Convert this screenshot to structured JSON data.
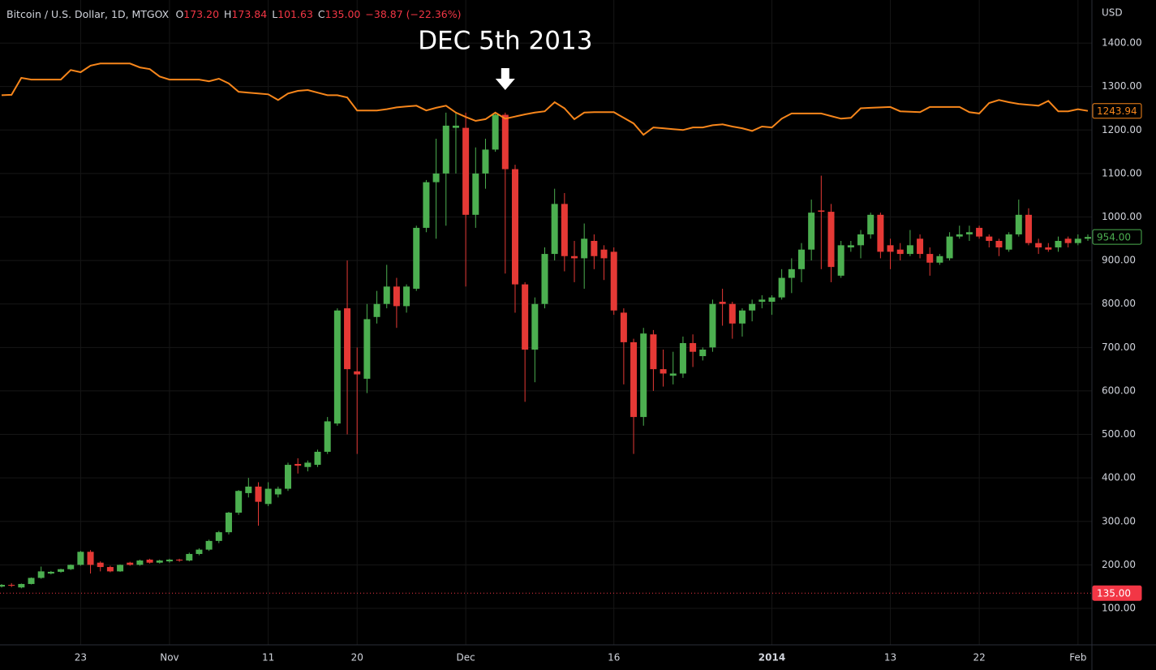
{
  "chart_data": {
    "type": "candlestick",
    "title": "Bitcoin / U.S. Dollar, 1D, MTGOX",
    "ohlc": [
      {
        "key": "O",
        "value": "173.20"
      },
      {
        "key": "H",
        "value": "173.84"
      },
      {
        "key": "L",
        "value": "101.63"
      },
      {
        "key": "C",
        "value": "135.00"
      }
    ],
    "change": "−38.87 (−22.36%)",
    "y_label": "USD",
    "annotation": {
      "text": "DEC 5th 2013",
      "x": "2013-12-05"
    },
    "x": [
      "2013-10-15",
      "2013-10-16",
      "2013-10-17",
      "2013-10-18",
      "2013-10-19",
      "2013-10-20",
      "2013-10-21",
      "2013-10-22",
      "2013-10-23",
      "2013-10-24",
      "2013-10-25",
      "2013-10-26",
      "2013-10-27",
      "2013-10-28",
      "2013-10-29",
      "2013-10-30",
      "2013-10-31",
      "2013-11-01",
      "2013-11-02",
      "2013-11-03",
      "2013-11-04",
      "2013-11-05",
      "2013-11-06",
      "2013-11-07",
      "2013-11-08",
      "2013-11-09",
      "2013-11-10",
      "2013-11-11",
      "2013-11-12",
      "2013-11-13",
      "2013-11-14",
      "2013-11-15",
      "2013-11-16",
      "2013-11-17",
      "2013-11-18",
      "2013-11-19",
      "2013-11-20",
      "2013-11-21",
      "2013-11-22",
      "2013-11-23",
      "2013-11-24",
      "2013-11-25",
      "2013-11-26",
      "2013-11-27",
      "2013-11-28",
      "2013-11-29",
      "2013-11-30",
      "2013-12-01",
      "2013-12-02",
      "2013-12-03",
      "2013-12-04",
      "2013-12-05",
      "2013-12-06",
      "2013-12-07",
      "2013-12-08",
      "2013-12-09",
      "2013-12-10",
      "2013-12-11",
      "2013-12-12",
      "2013-12-13",
      "2013-12-14",
      "2013-12-15",
      "2013-12-16",
      "2013-12-17",
      "2013-12-18",
      "2013-12-19",
      "2013-12-20",
      "2013-12-21",
      "2013-12-22",
      "2013-12-23",
      "2013-12-24",
      "2013-12-25",
      "2013-12-26",
      "2013-12-27",
      "2013-12-28",
      "2013-12-29",
      "2013-12-30",
      "2013-12-31",
      "2014-01-01",
      "2014-01-02",
      "2014-01-03",
      "2014-01-04",
      "2014-01-05",
      "2014-01-06",
      "2014-01-07",
      "2014-01-08",
      "2014-01-09",
      "2014-01-10",
      "2014-01-11",
      "2014-01-12",
      "2014-01-13",
      "2014-01-14",
      "2014-01-15",
      "2014-01-16",
      "2014-01-17",
      "2014-01-18",
      "2014-01-19",
      "2014-01-20",
      "2014-01-21",
      "2014-01-22",
      "2014-01-23",
      "2014-01-24",
      "2014-01-25",
      "2014-01-26",
      "2014-01-27",
      "2014-01-28",
      "2014-01-29",
      "2014-01-30",
      "2014-01-31",
      "2014-02-01",
      "2014-02-02"
    ],
    "open": [
      150,
      154,
      148,
      156,
      170,
      180,
      184,
      190,
      200,
      230,
      205,
      195,
      185,
      205,
      200,
      212,
      205,
      208,
      212,
      210,
      225,
      235,
      255,
      275,
      320,
      365,
      380,
      340,
      362,
      375,
      432,
      425,
      430,
      460,
      525,
      790,
      645,
      628,
      770,
      800,
      840,
      795,
      835,
      975,
      1080,
      1100,
      1205,
      1205,
      1005,
      1100,
      1155,
      1235,
      1110,
      845,
      695,
      800,
      915,
      1030,
      910,
      905,
      945,
      925,
      920,
      780,
      712,
      540,
      730,
      650,
      635,
      640,
      710,
      680,
      700,
      805,
      800,
      755,
      785,
      805,
      805,
      815,
      860,
      880,
      925,
      1015,
      1012,
      865,
      930,
      935,
      960,
      1005,
      935,
      925,
      915,
      950,
      915,
      895,
      905,
      955,
      960,
      975,
      955,
      945,
      925,
      960,
      1005,
      940,
      930,
      930,
      950,
      940,
      950
    ],
    "high": [
      156,
      158,
      157,
      171,
      196,
      186,
      191,
      201,
      232,
      234,
      208,
      198,
      201,
      207,
      212,
      214,
      212,
      214,
      214,
      228,
      238,
      258,
      278,
      322,
      372,
      400,
      390,
      390,
      380,
      435,
      445,
      440,
      465,
      540,
      790,
      900,
      700,
      800,
      830,
      890,
      860,
      845,
      980,
      1085,
      1180,
      1240,
      1240,
      1240,
      1160,
      1180,
      1240,
      1240,
      1120,
      850,
      815,
      930,
      1065,
      1055,
      945,
      985,
      960,
      935,
      930,
      790,
      720,
      745,
      740,
      695,
      690,
      725,
      730,
      700,
      810,
      835,
      805,
      790,
      810,
      820,
      820,
      880,
      905,
      940,
      1040,
      1095,
      1030,
      945,
      945,
      970,
      1010,
      1010,
      950,
      940,
      970,
      960,
      930,
      915,
      965,
      980,
      980,
      980,
      960,
      950,
      965,
      1040,
      1020,
      950,
      940,
      955,
      955,
      960,
      960
    ],
    "low": [
      148,
      149,
      146,
      155,
      168,
      178,
      182,
      188,
      198,
      180,
      185,
      183,
      184,
      198,
      198,
      203,
      203,
      205,
      207,
      208,
      222,
      232,
      250,
      270,
      315,
      355,
      290,
      335,
      355,
      370,
      410,
      415,
      425,
      455,
      520,
      500,
      455,
      595,
      755,
      790,
      745,
      780,
      830,
      965,
      950,
      980,
      1100,
      840,
      975,
      1065,
      1150,
      870,
      780,
      575,
      620,
      790,
      900,
      875,
      850,
      835,
      880,
      855,
      775,
      615,
      455,
      520,
      600,
      610,
      615,
      630,
      655,
      670,
      690,
      750,
      720,
      725,
      760,
      790,
      775,
      810,
      825,
      850,
      900,
      880,
      850,
      860,
      920,
      905,
      950,
      905,
      880,
      900,
      910,
      905,
      865,
      890,
      900,
      950,
      945,
      950,
      930,
      910,
      920,
      955,
      935,
      915,
      920,
      920,
      930,
      935,
      945
    ],
    "close": [
      154,
      152,
      156,
      170,
      185,
      184,
      190,
      200,
      230,
      200,
      195,
      185,
      200,
      200,
      210,
      205,
      210,
      212,
      210,
      225,
      235,
      255,
      275,
      320,
      370,
      380,
      345,
      375,
      375,
      430,
      428,
      435,
      460,
      530,
      785,
      650,
      638,
      765,
      800,
      840,
      795,
      840,
      975,
      1080,
      1100,
      1210,
      1210,
      1005,
      1100,
      1155,
      1235,
      1110,
      845,
      695,
      800,
      915,
      1030,
      910,
      905,
      950,
      910,
      905,
      785,
      712,
      540,
      732,
      650,
      640,
      640,
      710,
      690,
      695,
      800,
      800,
      755,
      785,
      800,
      810,
      815,
      860,
      880,
      925,
      1010,
      1012,
      885,
      935,
      935,
      960,
      1005,
      920,
      920,
      915,
      935,
      915,
      895,
      910,
      955,
      960,
      965,
      955,
      945,
      930,
      960,
      1005,
      940,
      930,
      925,
      945,
      940,
      950,
      954
    ],
    "last_close_label": "954.00",
    "up_color": "#4caf50",
    "down_color": "#e53935",
    "lines": [
      {
        "color": "#f7861b",
        "last_label": "1243.94",
        "values": [
          1280,
          1281,
          1320,
          1316,
          1316,
          1316,
          1316,
          1338,
          1333,
          1348,
          1353,
          1353,
          1353,
          1353,
          1344,
          1340,
          1323,
          1316,
          1316,
          1316,
          1316,
          1312,
          1318,
          1307,
          1288,
          1286,
          1284,
          1282,
          1269,
          1284,
          1290,
          1292,
          1286,
          1280,
          1280,
          1275,
          1245,
          1245,
          1245,
          1248,
          1252,
          1254,
          1256,
          1245,
          1251,
          1256,
          1240,
          1230,
          1221,
          1225,
          1240,
          1226,
          1231,
          1236,
          1240,
          1243,
          1264,
          1250,
          1225,
          1240,
          1241,
          1241,
          1241,
          1228,
          1215,
          1189,
          1206,
          1204,
          1202,
          1200,
          1206,
          1206,
          1211,
          1213,
          1208,
          1204,
          1198,
          1208,
          1206,
          1226,
          1238,
          1238,
          1238,
          1238,
          1232,
          1226,
          1228,
          1250,
          1251,
          1252,
          1253,
          1243,
          1242,
          1241,
          1253,
          1253,
          1253,
          1253,
          1241,
          1238,
          1262,
          1269,
          1264,
          1260,
          1258,
          1256,
          1267,
          1243,
          1243,
          1248,
          1243.94
        ]
      }
    ],
    "price_line": {
      "value": 135,
      "label": "135.00",
      "color": "#f23645"
    },
    "xlim": [
      "2013-10-15",
      "2014-02-02"
    ],
    "xticks": [
      {
        "value": "2013-10-23",
        "label": "23"
      },
      {
        "value": "2013-11-01",
        "label": "Nov"
      },
      {
        "value": "2013-11-11",
        "label": "11"
      },
      {
        "value": "2013-11-20",
        "label": "20"
      },
      {
        "value": "2013-12-01",
        "label": "Dec"
      },
      {
        "value": "2013-12-16",
        "label": "16"
      },
      {
        "value": "2014-01-01",
        "label": "2014"
      },
      {
        "value": "2014-01-13",
        "label": "13"
      },
      {
        "value": "2014-01-22",
        "label": "22"
      },
      {
        "value": "2014-02-01",
        "label": "Feb"
      }
    ],
    "ylim": [
      16,
      1499
    ],
    "yticks": [
      {
        "value": 100,
        "label": "100.00"
      },
      {
        "value": 200,
        "label": "200.00"
      },
      {
        "value": 300,
        "label": "300.00"
      },
      {
        "value": 400,
        "label": "400.00"
      },
      {
        "value": 500,
        "label": "500.00"
      },
      {
        "value": 600,
        "label": "600.00"
      },
      {
        "value": 700,
        "label": "700.00"
      },
      {
        "value": 800,
        "label": "800.00"
      },
      {
        "value": 900,
        "label": "900.00"
      },
      {
        "value": 1000,
        "label": "1000.00"
      },
      {
        "value": 1100,
        "label": "1100.00"
      },
      {
        "value": 1200,
        "label": "1200.00"
      },
      {
        "value": 1300,
        "label": "1300.00"
      },
      {
        "value": 1400,
        "label": "1400.00"
      }
    ],
    "grid": true
  }
}
